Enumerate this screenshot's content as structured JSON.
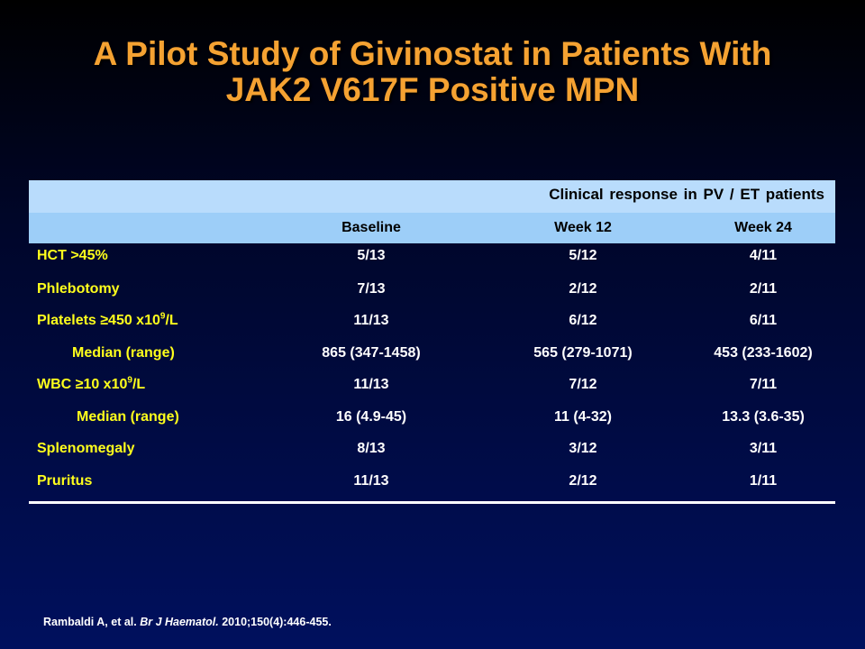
{
  "title": {
    "line1": "A Pilot Study of Givinostat in Patients With",
    "line2": "JAK2 V617F Positive MPN"
  },
  "table": {
    "group_header": "Clinical  response in PV / ET patients",
    "columns": [
      "Baseline",
      "Week 12",
      "Week 24"
    ],
    "rows": [
      {
        "label": "HCT >45%",
        "values": [
          "5/13",
          "5/12",
          "4/11"
        ]
      },
      {
        "label": "Phlebotomy",
        "values": [
          "7/13",
          "2/12",
          "2/11"
        ]
      },
      {
        "label_pre": "Platelets ≥450 x10",
        "label_sup": "9",
        "label_post": "/L",
        "values": [
          "11/13",
          "6/12",
          "6/11"
        ]
      },
      {
        "label": "Median (range)",
        "values": [
          "865 (347-1458)",
          "565 (279-1071)",
          "453 (233-1602)"
        ]
      },
      {
        "label_pre": "WBC ≥10 x10",
        "label_sup": "9",
        "label_post": "/L",
        "values": [
          "11/13",
          "7/12",
          "7/11"
        ]
      },
      {
        "label": "Median  (range)",
        "values": [
          "16 (4.9-45)",
          "11 (4-32)",
          "13.3 (3.6-35)"
        ]
      },
      {
        "label": "Splenomegaly",
        "values": [
          "8/13",
          "3/12",
          "3/11"
        ]
      },
      {
        "label": "Pruritus",
        "values": [
          "11/13",
          "2/12",
          "1/11"
        ]
      }
    ]
  },
  "citation": {
    "authors": "Rambaldi A, et al. ",
    "journal": "Br J Haematol.",
    "details": " 2010;150(4):446-455."
  }
}
